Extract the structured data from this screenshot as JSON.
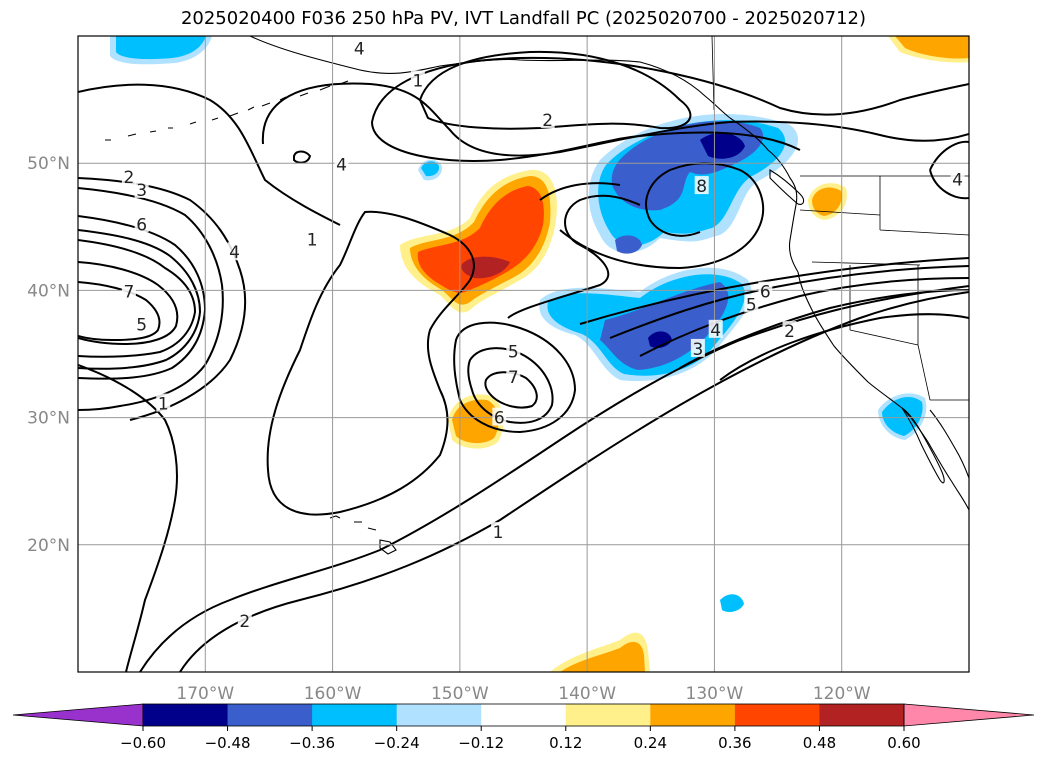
{
  "title": "2025020400 F036 250 hPa PV, IVT Landfall PC (2025020700 - 2025020712)",
  "map": {
    "lon_range": [
      -180,
      -110
    ],
    "lat_range": [
      10,
      60
    ],
    "lon_ticks": [
      {
        "value": -170,
        "label": "170°W"
      },
      {
        "value": -160,
        "label": "160°W"
      },
      {
        "value": -150,
        "label": "150°W"
      },
      {
        "value": -140,
        "label": "140°W"
      },
      {
        "value": -130,
        "label": "130°W"
      },
      {
        "value": -120,
        "label": "120°W"
      }
    ],
    "lat_ticks": [
      {
        "value": 20,
        "label": "20°N"
      },
      {
        "value": 30,
        "label": "30°N"
      },
      {
        "value": 40,
        "label": "40°N"
      },
      {
        "value": 50,
        "label": "50°N"
      }
    ],
    "grid": true
  },
  "colorbar": {
    "levels": [
      -0.6,
      -0.48,
      -0.36,
      -0.24,
      -0.12,
      0.12,
      0.24,
      0.36,
      0.48,
      0.6
    ],
    "tick_labels": [
      "−0.60",
      "−0.48",
      "−0.36",
      "−0.24",
      "−0.12",
      "0.12",
      "0.24",
      "0.36",
      "0.48",
      "0.60"
    ],
    "colors": [
      "#9932cc",
      "#00008b",
      "#3a5fcd",
      "#00bfff",
      "#b0e2ff",
      "#ffffff",
      "#fff08c",
      "#ffa500",
      "#ff4500",
      "#b22222",
      "#ff88aa"
    ],
    "extend": "both"
  },
  "contour_labels": [
    {
      "text": "1",
      "lon": -153.3,
      "lat": 56.5
    },
    {
      "text": "2",
      "lon": -143.1,
      "lat": 53.4
    },
    {
      "text": "4",
      "lon": -157.9,
      "lat": 59.0
    },
    {
      "text": "4",
      "lon": -159.3,
      "lat": 49.9
    },
    {
      "text": "2",
      "lon": -176.0,
      "lat": 48.9
    },
    {
      "text": "3",
      "lon": -175.0,
      "lat": 47.9
    },
    {
      "text": "6",
      "lon": -175.0,
      "lat": 45.2
    },
    {
      "text": "4",
      "lon": -167.7,
      "lat": 43.0
    },
    {
      "text": "7",
      "lon": -176.0,
      "lat": 39.9
    },
    {
      "text": "5",
      "lon": -175.0,
      "lat": 37.3
    },
    {
      "text": "1",
      "lon": -173.3,
      "lat": 31.1
    },
    {
      "text": "1",
      "lon": -161.6,
      "lat": 44.0
    },
    {
      "text": "5",
      "lon": -145.8,
      "lat": 35.2
    },
    {
      "text": "7",
      "lon": -145.8,
      "lat": 33.2
    },
    {
      "text": "6",
      "lon": -146.9,
      "lat": 30.0
    },
    {
      "text": "8",
      "lon": -131.0,
      "lat": 48.2
    },
    {
      "text": "6",
      "lon": -126.0,
      "lat": 39.9
    },
    {
      "text": "5",
      "lon": -127.1,
      "lat": 38.9
    },
    {
      "text": "4",
      "lon": -129.9,
      "lat": 36.9
    },
    {
      "text": "3",
      "lon": -131.3,
      "lat": 35.4
    },
    {
      "text": "2",
      "lon": -124.1,
      "lat": 36.8
    },
    {
      "text": "1",
      "lon": -147.0,
      "lat": 21.0
    },
    {
      "text": "2",
      "lon": -166.9,
      "lat": 14.0
    },
    {
      "text": "4",
      "lon": -110.9,
      "lat": 48.7
    }
  ]
}
